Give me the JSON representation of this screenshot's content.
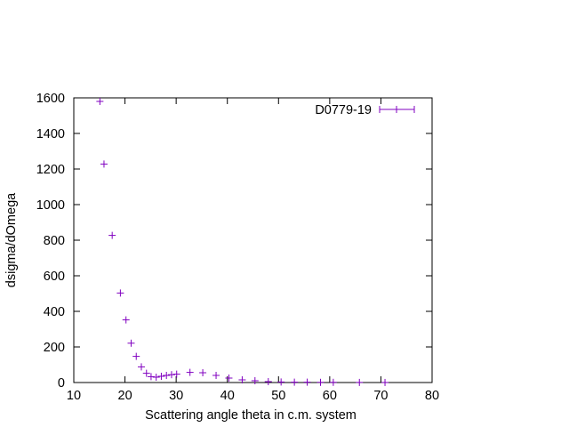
{
  "chart_data": {
    "type": "scatter",
    "xlabel": "Scattering angle theta in c.m. system",
    "ylabel": "dsigma/dOmega",
    "xlim": [
      10,
      80
    ],
    "ylim": [
      0,
      1600
    ],
    "xticks": [
      10,
      20,
      30,
      40,
      50,
      60,
      70,
      80
    ],
    "yticks": [
      0,
      200,
      400,
      600,
      800,
      1000,
      1200,
      1400,
      1600
    ],
    "grid": false,
    "legend_position": "top-right",
    "series": [
      {
        "name": "D0779-19",
        "color": "#8000c0",
        "marker": "plus",
        "x": [
          15.1,
          15.9,
          17.5,
          19.1,
          20.2,
          21.2,
          22.2,
          23.2,
          24.2,
          25.1,
          26.1,
          27.1,
          28.1,
          29.1,
          30.1,
          32.7,
          35.2,
          37.8,
          40.3,
          42.9,
          45.4,
          48.0,
          50.5,
          53.1,
          55.6,
          58.2,
          60.7,
          65.8,
          70.8
        ],
        "y": [
          1580,
          1228,
          827,
          503,
          352,
          221,
          147,
          88,
          52,
          33,
          30,
          35,
          40,
          44,
          47,
          57,
          55,
          40,
          25,
          15,
          10,
          5,
          3,
          2,
          2,
          1,
          1,
          0.5,
          0.3
        ]
      }
    ]
  }
}
